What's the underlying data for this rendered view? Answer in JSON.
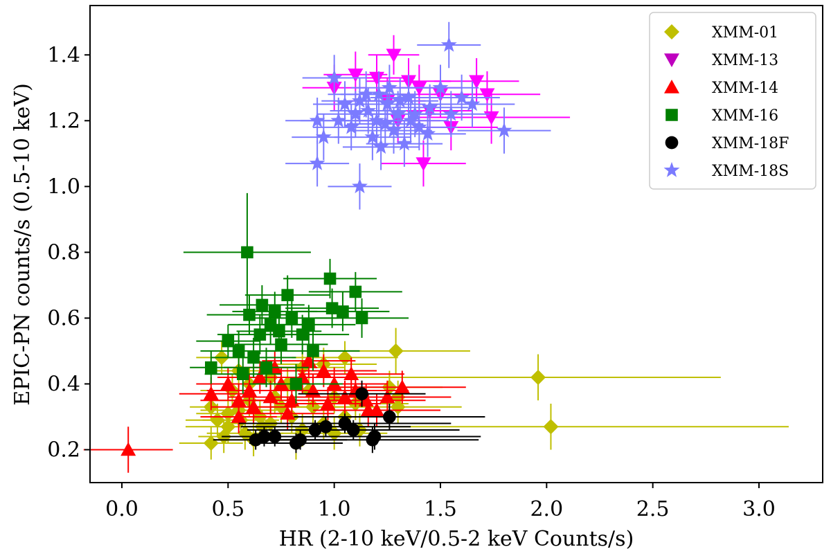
{
  "chart_data": {
    "type": "scatter",
    "title": "",
    "xlabel": "HR (2-10 keV/0.5-2 keV Counts/s)",
    "ylabel": "EPIC-PN counts/s (0.5-10 keV)",
    "xlim": [
      -0.15,
      3.3
    ],
    "ylim": [
      0.1,
      1.55
    ],
    "xticks": [
      0.0,
      0.5,
      1.0,
      1.5,
      2.0,
      2.5,
      3.0
    ],
    "xtick_labels": [
      "0.0",
      "0.5",
      "1.0",
      "1.5",
      "2.0",
      "2.5",
      "3.0"
    ],
    "yticks": [
      0.2,
      0.4,
      0.6,
      0.8,
      1.0,
      1.2,
      1.4
    ],
    "ytick_labels": [
      "0.2",
      "0.4",
      "0.6",
      "0.8",
      "1.0",
      "1.2",
      "1.4"
    ],
    "legend_position": "top-right",
    "series": [
      {
        "name": "XMM-01",
        "marker": "diamond",
        "color": "#bfbf00",
        "alpha": 1.0,
        "points": [
          [
            0.47,
            0.48,
            0.12,
            0.05
          ],
          [
            0.42,
            0.33,
            0.1,
            0.04
          ],
          [
            0.45,
            0.29,
            0.15,
            0.05
          ],
          [
            0.5,
            0.27,
            0.2,
            0.05
          ],
          [
            0.55,
            0.32,
            0.18,
            0.05
          ],
          [
            0.6,
            0.35,
            0.2,
            0.05
          ],
          [
            0.52,
            0.38,
            0.15,
            0.05
          ],
          [
            0.58,
            0.25,
            0.18,
            0.05
          ],
          [
            0.65,
            0.3,
            0.2,
            0.05
          ],
          [
            0.7,
            0.28,
            0.22,
            0.05
          ],
          [
            0.75,
            0.33,
            0.2,
            0.05
          ],
          [
            0.48,
            0.24,
            0.12,
            0.05
          ],
          [
            0.62,
            0.23,
            0.2,
            0.05
          ],
          [
            0.8,
            0.3,
            0.2,
            0.05
          ],
          [
            0.85,
            0.26,
            0.22,
            0.05
          ],
          [
            0.9,
            0.33,
            0.2,
            0.05
          ],
          [
            0.95,
            0.28,
            0.22,
            0.05
          ],
          [
            1.0,
            0.25,
            0.25,
            0.05
          ],
          [
            1.05,
            0.3,
            0.25,
            0.05
          ],
          [
            1.1,
            0.34,
            0.25,
            0.05
          ],
          [
            0.55,
            0.44,
            0.15,
            0.05
          ],
          [
            0.7,
            0.42,
            0.2,
            0.05
          ],
          [
            0.85,
            0.45,
            0.2,
            0.05
          ],
          [
            0.95,
            0.46,
            0.25,
            0.05
          ],
          [
            1.05,
            0.48,
            0.25,
            0.05
          ],
          [
            0.82,
            0.22,
            0.2,
            0.05
          ],
          [
            1.26,
            0.39,
            0.25,
            0.05
          ],
          [
            1.3,
            0.36,
            0.25,
            0.05
          ],
          [
            1.3,
            0.33,
            0.3,
            0.05
          ],
          [
            1.29,
            0.5,
            0.35,
            0.07
          ],
          [
            1.96,
            0.42,
            0.86,
            0.07
          ],
          [
            2.02,
            0.27,
            1.12,
            0.07
          ],
          [
            0.42,
            0.22,
            0.15,
            0.05
          ],
          [
            0.6,
            0.4,
            0.18,
            0.05
          ],
          [
            0.72,
            0.36,
            0.2,
            0.05
          ],
          [
            0.88,
            0.38,
            0.22,
            0.05
          ],
          [
            1.12,
            0.26,
            0.25,
            0.05
          ],
          [
            0.5,
            0.31,
            0.15,
            0.05
          ],
          [
            0.66,
            0.27,
            0.2,
            0.05
          ],
          [
            0.78,
            0.4,
            0.2,
            0.05
          ],
          [
            1.0,
            0.36,
            0.25,
            0.05
          ],
          [
            0.56,
            0.29,
            0.18,
            0.05
          ]
        ]
      },
      {
        "name": "XMM-13",
        "marker": "triangle-down",
        "color": "#bf00bf",
        "alpha": 1.0,
        "points": [
          [
            1.28,
            1.4,
            0.12,
            0.06
          ],
          [
            1.42,
            1.07,
            0.2,
            0.07
          ],
          [
            1.67,
            1.32,
            0.2,
            0.07
          ],
          [
            1.72,
            1.28,
            0.25,
            0.07
          ],
          [
            1.74,
            1.21,
            0.37,
            0.08
          ],
          [
            1.0,
            1.3,
            0.15,
            0.07
          ],
          [
            1.1,
            1.34,
            0.15,
            0.07
          ],
          [
            1.2,
            1.33,
            0.18,
            0.07
          ],
          [
            1.35,
            1.32,
            0.2,
            0.07
          ],
          [
            1.5,
            1.28,
            0.2,
            0.07
          ],
          [
            1.45,
            1.23,
            0.2,
            0.07
          ],
          [
            1.3,
            1.2,
            0.2,
            0.07
          ],
          [
            1.55,
            1.18,
            0.22,
            0.07
          ],
          [
            1.25,
            1.26,
            0.18,
            0.07
          ],
          [
            1.4,
            1.3,
            0.2,
            0.07
          ]
        ]
      },
      {
        "name": "XMM-14",
        "marker": "triangle-up",
        "color": "#ff0000",
        "alpha": 1.0,
        "points": [
          [
            0.03,
            0.2,
            0.21,
            0.07
          ],
          [
            0.42,
            0.37,
            0.15,
            0.05
          ],
          [
            0.5,
            0.4,
            0.15,
            0.05
          ],
          [
            0.55,
            0.35,
            0.18,
            0.05
          ],
          [
            0.6,
            0.38,
            0.2,
            0.05
          ],
          [
            0.65,
            0.42,
            0.2,
            0.05
          ],
          [
            0.7,
            0.36,
            0.2,
            0.05
          ],
          [
            0.75,
            0.4,
            0.22,
            0.05
          ],
          [
            0.8,
            0.35,
            0.22,
            0.05
          ],
          [
            0.85,
            0.42,
            0.22,
            0.05
          ],
          [
            0.9,
            0.38,
            0.25,
            0.05
          ],
          [
            0.95,
            0.44,
            0.25,
            0.05
          ],
          [
            1.0,
            0.4,
            0.25,
            0.05
          ],
          [
            1.05,
            0.36,
            0.25,
            0.05
          ],
          [
            1.1,
            0.38,
            0.25,
            0.05
          ],
          [
            1.15,
            0.35,
            0.28,
            0.05
          ],
          [
            1.2,
            0.32,
            0.3,
            0.05
          ],
          [
            1.25,
            0.36,
            0.3,
            0.05
          ],
          [
            1.32,
            0.39,
            0.3,
            0.05
          ],
          [
            0.72,
            0.45,
            0.2,
            0.05
          ],
          [
            0.88,
            0.47,
            0.22,
            0.05
          ],
          [
            0.62,
            0.33,
            0.2,
            0.05
          ],
          [
            0.97,
            0.34,
            0.25,
            0.05
          ],
          [
            1.08,
            0.43,
            0.25,
            0.05
          ],
          [
            1.16,
            0.32,
            0.25,
            0.05
          ],
          [
            0.78,
            0.31,
            0.22,
            0.05
          ],
          [
            0.55,
            0.3,
            0.18,
            0.05
          ]
        ]
      },
      {
        "name": "XMM-16",
        "marker": "square",
        "color": "#007f00",
        "alpha": 1.0,
        "points": [
          [
            0.59,
            0.8,
            0.3,
            0.18
          ],
          [
            0.42,
            0.45,
            0.1,
            0.05
          ],
          [
            0.5,
            0.53,
            0.15,
            0.05
          ],
          [
            0.55,
            0.5,
            0.18,
            0.06
          ],
          [
            0.6,
            0.61,
            0.2,
            0.06
          ],
          [
            0.65,
            0.55,
            0.2,
            0.06
          ],
          [
            0.7,
            0.58,
            0.2,
            0.06
          ],
          [
            0.75,
            0.52,
            0.22,
            0.06
          ],
          [
            0.78,
            0.67,
            0.2,
            0.06
          ],
          [
            0.8,
            0.6,
            0.22,
            0.06
          ],
          [
            0.85,
            0.55,
            0.22,
            0.06
          ],
          [
            0.9,
            0.5,
            0.22,
            0.06
          ],
          [
            0.98,
            0.72,
            0.22,
            0.06
          ],
          [
            0.99,
            0.63,
            0.22,
            0.06
          ],
          [
            1.04,
            0.62,
            0.22,
            0.06
          ],
          [
            1.1,
            0.68,
            0.22,
            0.06
          ],
          [
            1.13,
            0.6,
            0.22,
            0.06
          ],
          [
            0.68,
            0.45,
            0.2,
            0.06
          ],
          [
            0.72,
            0.62,
            0.2,
            0.06
          ],
          [
            0.62,
            0.48,
            0.2,
            0.06
          ],
          [
            0.82,
            0.4,
            0.22,
            0.06
          ],
          [
            0.66,
            0.64,
            0.2,
            0.06
          ],
          [
            0.74,
            0.56,
            0.2,
            0.06
          ],
          [
            0.88,
            0.58,
            0.22,
            0.06
          ],
          [
            0.57,
            0.43,
            0.18,
            0.06
          ]
        ]
      },
      {
        "name": "XMM-18F",
        "marker": "circle",
        "color": "#000000",
        "alpha": 1.0,
        "points": [
          [
            0.63,
            0.23,
            0.2,
            0.03
          ],
          [
            0.67,
            0.24,
            0.2,
            0.03
          ],
          [
            0.72,
            0.24,
            0.2,
            0.03
          ],
          [
            0.82,
            0.22,
            0.22,
            0.03
          ],
          [
            0.84,
            0.23,
            0.22,
            0.03
          ],
          [
            0.91,
            0.26,
            0.3,
            0.03
          ],
          [
            0.96,
            0.27,
            0.4,
            0.03
          ],
          [
            1.05,
            0.28,
            0.5,
            0.03
          ],
          [
            1.09,
            0.26,
            0.5,
            0.03
          ],
          [
            1.13,
            0.37,
            0.3,
            0.04
          ],
          [
            1.18,
            0.23,
            0.5,
            0.04
          ],
          [
            1.19,
            0.24,
            0.5,
            0.04
          ],
          [
            1.26,
            0.3,
            0.45,
            0.04
          ]
        ]
      },
      {
        "name": "XMM-18S",
        "marker": "star",
        "color": "#7b7bff",
        "alpha": 1.0,
        "points": [
          [
            1.54,
            1.43,
            0.15,
            0.07
          ],
          [
            1.8,
            1.17,
            0.22,
            0.07
          ],
          [
            1.12,
            1.0,
            0.15,
            0.07
          ],
          [
            0.92,
            1.07,
            0.15,
            0.07
          ],
          [
            0.92,
            1.2,
            0.15,
            0.07
          ],
          [
            0.95,
            1.15,
            0.15,
            0.07
          ],
          [
            1.0,
            1.33,
            0.15,
            0.07
          ],
          [
            1.05,
            1.25,
            0.15,
            0.07
          ],
          [
            1.1,
            1.22,
            0.18,
            0.07
          ],
          [
            1.15,
            1.28,
            0.18,
            0.07
          ],
          [
            1.2,
            1.2,
            0.18,
            0.07
          ],
          [
            1.25,
            1.25,
            0.18,
            0.07
          ],
          [
            1.3,
            1.22,
            0.18,
            0.07
          ],
          [
            1.35,
            1.27,
            0.18,
            0.07
          ],
          [
            1.4,
            1.18,
            0.18,
            0.07
          ],
          [
            1.45,
            1.24,
            0.18,
            0.07
          ],
          [
            1.5,
            1.3,
            0.18,
            0.07
          ],
          [
            1.55,
            1.22,
            0.18,
            0.07
          ],
          [
            1.6,
            1.27,
            0.18,
            0.07
          ],
          [
            1.65,
            1.25,
            0.2,
            0.07
          ],
          [
            1.18,
            1.15,
            0.18,
            0.07
          ],
          [
            1.22,
            1.12,
            0.18,
            0.07
          ],
          [
            1.28,
            1.17,
            0.18,
            0.07
          ],
          [
            1.33,
            1.13,
            0.18,
            0.07
          ],
          [
            1.08,
            1.18,
            0.18,
            0.07
          ],
          [
            1.02,
            1.2,
            0.18,
            0.07
          ],
          [
            1.38,
            1.22,
            0.18,
            0.07
          ],
          [
            1.44,
            1.16,
            0.18,
            0.07
          ],
          [
            1.26,
            1.3,
            0.18,
            0.07
          ],
          [
            1.16,
            1.23,
            0.18,
            0.07
          ],
          [
            1.31,
            1.26,
            0.18,
            0.07
          ],
          [
            1.21,
            1.28,
            0.18,
            0.07
          ],
          [
            1.36,
            1.2,
            0.18,
            0.07
          ],
          [
            1.12,
            1.26,
            0.18,
            0.07
          ],
          [
            1.24,
            1.19,
            0.18,
            0.07
          ]
        ]
      }
    ]
  }
}
